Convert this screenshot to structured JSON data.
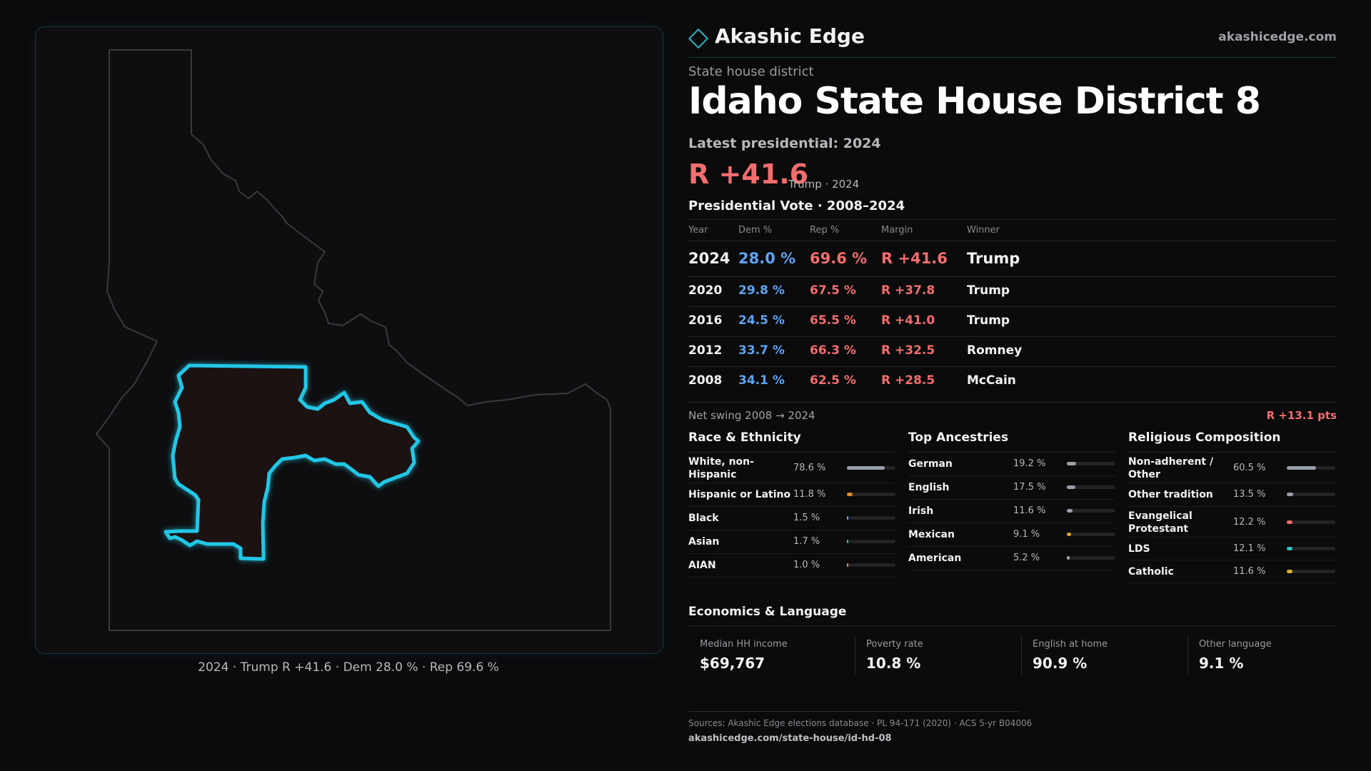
{
  "map": {
    "caption": "2024 · Trump R +41.6 · Dem 28.0 % · Rep 69.6 %",
    "colors": {
      "district_outline": "#23c7e6",
      "district_fill": "#1c1212",
      "state_outline": "#3a3a3e"
    }
  },
  "header": {
    "brand": "Akashic Edge",
    "url": "akashicedge.com",
    "kicker": "State house district",
    "title": "Idaho State House District 8",
    "latest": "Latest presidential: 2024",
    "margin": "R +41.6",
    "margin_sub": "Trump · 2024"
  },
  "colors": {
    "dem": "#5ea3f2",
    "rep": "#f26d6d",
    "accent": "#2bb5c9"
  },
  "results": {
    "title": "Presidential Vote · 2008–2024",
    "headers": [
      "Year",
      "Dem %",
      "Rep %",
      "Margin",
      "Winner"
    ],
    "rows": [
      {
        "year": "2024",
        "dem": "28.0 %",
        "rep": "69.6 %",
        "margin": "R +41.6",
        "winner": "Trump"
      },
      {
        "year": "2020",
        "dem": "29.8 %",
        "rep": "67.5 %",
        "margin": "R +37.8",
        "winner": "Trump"
      },
      {
        "year": "2016",
        "dem": "24.5 %",
        "rep": "65.5 %",
        "margin": "R +41.0",
        "winner": "Trump"
      },
      {
        "year": "2012",
        "dem": "33.7 %",
        "rep": "66.3 %",
        "margin": "R +32.5",
        "winner": "Romney"
      },
      {
        "year": "2008",
        "dem": "34.1 %",
        "rep": "62.5 %",
        "margin": "R +28.5",
        "winner": "McCain"
      }
    ],
    "swing_label": "Net swing 2008 → 2024",
    "swing_value": "R +13.1 pts"
  },
  "demographics": [
    {
      "title": "Race & Ethnicity",
      "items": [
        {
          "label": "White, non-Hispanic",
          "value": "78.6 %",
          "pct": 78.6,
          "color": "#9aa0aa"
        },
        {
          "label": "Hispanic or Latino",
          "value": "11.8 %",
          "pct": 11.8,
          "color": "#e08a2c"
        },
        {
          "label": "Black",
          "value": "1.5 %",
          "pct": 1.5,
          "color": "#5ea3f2"
        },
        {
          "label": "Asian",
          "value": "1.7 %",
          "pct": 1.7,
          "color": "#2ec6a0"
        },
        {
          "label": "AIAN",
          "value": "1.0 %",
          "pct": 1.0,
          "color": "#e08a2c"
        }
      ]
    },
    {
      "title": "Top Ancestries",
      "items": [
        {
          "label": "German",
          "value": "19.2 %",
          "pct": 19.2,
          "color": "#9aa0aa"
        },
        {
          "label": "English",
          "value": "17.5 %",
          "pct": 17.5,
          "color": "#9aa0aa"
        },
        {
          "label": "Irish",
          "value": "11.6 %",
          "pct": 11.6,
          "color": "#9aa0aa"
        },
        {
          "label": "Mexican",
          "value": "9.1 %",
          "pct": 9.1,
          "color": "#e0a02c"
        },
        {
          "label": "American",
          "value": "5.2 %",
          "pct": 5.2,
          "color": "#9aa0aa"
        }
      ]
    },
    {
      "title": "Religious Composition",
      "items": [
        {
          "label": "Non-adherent / Other",
          "value": "60.5 %",
          "pct": 60.5,
          "color": "#9aa0aa"
        },
        {
          "label": "Other tradition",
          "value": "13.5 %",
          "pct": 13.5,
          "color": "#9aa0aa"
        },
        {
          "label": "Evangelical Protestant",
          "value": "12.2 %",
          "pct": 12.2,
          "color": "#f26d6d"
        },
        {
          "label": "LDS",
          "value": "12.1 %",
          "pct": 12.1,
          "color": "#2ec6c0"
        },
        {
          "label": "Catholic",
          "value": "11.6 %",
          "pct": 11.6,
          "color": "#e0b02c"
        }
      ]
    }
  ],
  "economics": {
    "title": "Economics & Language",
    "items": [
      {
        "label": "Median HH income",
        "value": "$69,767"
      },
      {
        "label": "Poverty rate",
        "value": "10.8 %"
      },
      {
        "label": "English at home",
        "value": "90.9 %"
      },
      {
        "label": "Other language",
        "value": "9.1 %"
      }
    ]
  },
  "sources": {
    "line1": "Sources: Akashic Edge elections database · PL 94-171 (2020) · ACS 5-yr B04006",
    "line2": "akashicedge.com/state-house/id-hd-08"
  }
}
